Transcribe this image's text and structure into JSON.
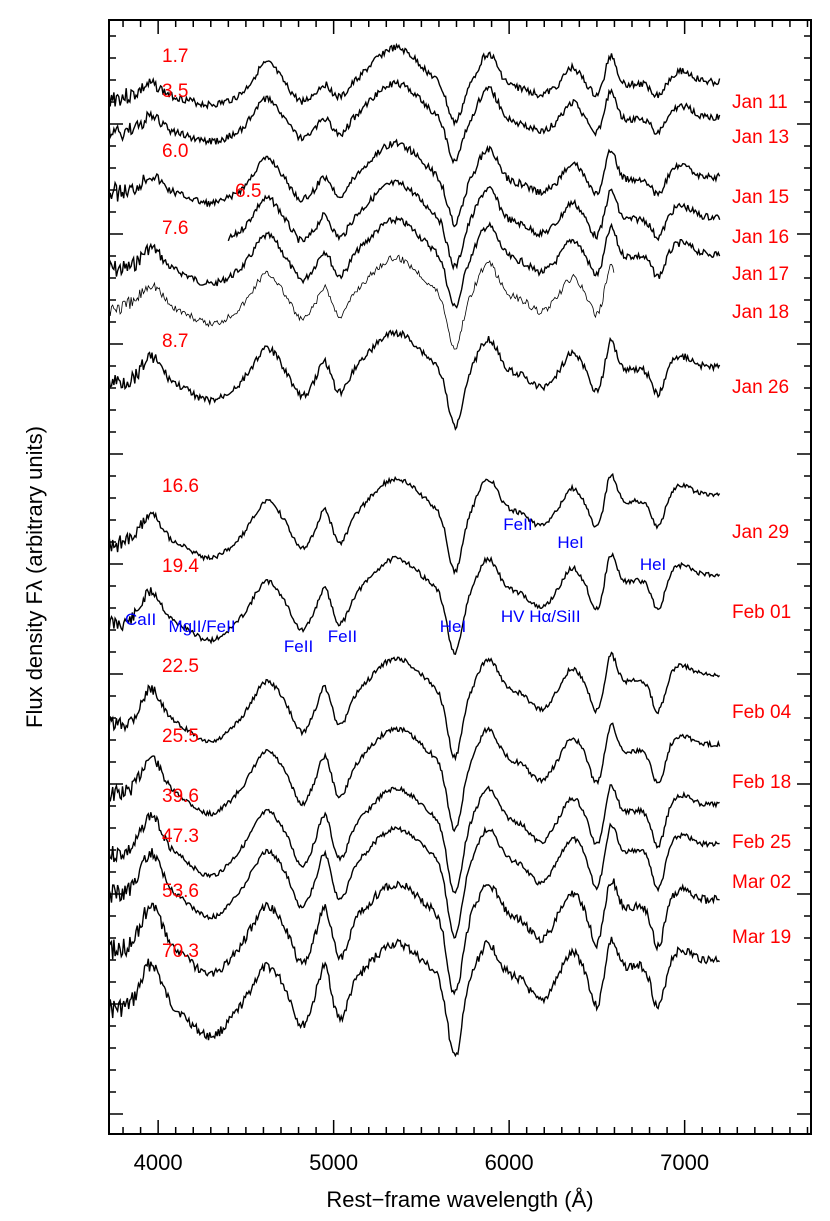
{
  "chart_data": {
    "type": "line",
    "title": "",
    "xlabel": "Rest−frame wavelength (Å)",
    "ylabel": "Flux density Fλ (arbitrary units)",
    "xlim": [
      3720,
      7720
    ],
    "x_ticks": [
      {
        "value": 4000,
        "label": "4000"
      },
      {
        "value": 5000,
        "label": "5000"
      },
      {
        "value": 6000,
        "label": "6000"
      },
      {
        "value": 7000,
        "label": "7000"
      }
    ],
    "x_minor_step": 100,
    "y_ticks_unlabeled": true,
    "grid": false,
    "legend": "none",
    "colors": {
      "spectrum": "#000000",
      "phase": "#ff0000",
      "date": "#ff0000",
      "line_id": "#0000ff",
      "axis": "#000000"
    },
    "series": [
      {
        "date": "Jan 11",
        "phase": "1.7",
        "offset": 90,
        "x_range": [
          3720,
          7200
        ]
      },
      {
        "date": "Jan 13",
        "phase": "3.5",
        "offset": 125,
        "x_range": [
          3720,
          7200
        ]
      },
      {
        "date": "Jan 15",
        "phase": "6.0",
        "offset": 185,
        "x_range": [
          3720,
          7200
        ]
      },
      {
        "date": "Jan 16",
        "phase": "6.5",
        "offset": 225,
        "x_range": [
          4400,
          7200
        ]
      },
      {
        "date": "Jan 17",
        "phase": "7.6",
        "offset": 262,
        "x_range": [
          3720,
          7200
        ]
      },
      {
        "date": "Jan 18",
        "phase": "",
        "offset": 300,
        "x_range": [
          3720,
          6600
        ]
      },
      {
        "date": "Jan 26",
        "phase": "8.7",
        "offset": 375,
        "x_range": [
          3720,
          7200
        ]
      },
      {
        "date": "Jan 29",
        "phase": "16.6",
        "offset": 520,
        "x_range": [
          3720,
          7200
        ]
      },
      {
        "date": "Feb 01",
        "phase": "19.4",
        "offset": 600,
        "x_range": [
          3720,
          7200
        ]
      },
      {
        "date": "Feb 04",
        "phase": "22.5",
        "offset": 700,
        "x_range": [
          3720,
          7200
        ]
      },
      {
        "date": "Feb 18",
        "phase": "25.5",
        "offset": 770,
        "x_range": [
          3720,
          7200
        ]
      },
      {
        "date": "Feb 25",
        "phase": "39.6",
        "offset": 830,
        "x_range": [
          3720,
          7200
        ]
      },
      {
        "date": "Mar 02",
        "phase": "47.3",
        "offset": 870,
        "x_range": [
          3720,
          7200
        ]
      },
      {
        "date": "Mar 19",
        "phase": "53.6",
        "offset": 925,
        "x_range": [
          3720,
          7200
        ]
      },
      {
        "date": "",
        "phase": "70.3",
        "offset": 985,
        "x_range": [
          3720,
          7200
        ]
      }
    ],
    "annotations": [
      {
        "text": "CaII",
        "wavelength": 3900
      },
      {
        "text": "MgII/FeII",
        "wavelength": 4250
      },
      {
        "text": "FeII",
        "wavelength": 4800
      },
      {
        "text": "FeII",
        "wavelength": 5050
      },
      {
        "text": "HeI",
        "wavelength": 5680
      },
      {
        "text": "HV Hα/SiII",
        "wavelength": 6180
      },
      {
        "text": "FeII",
        "wavelength": 6050
      },
      {
        "text": "HeI",
        "wavelength": 6350
      },
      {
        "text": "HeI",
        "wavelength": 6820
      }
    ]
  }
}
